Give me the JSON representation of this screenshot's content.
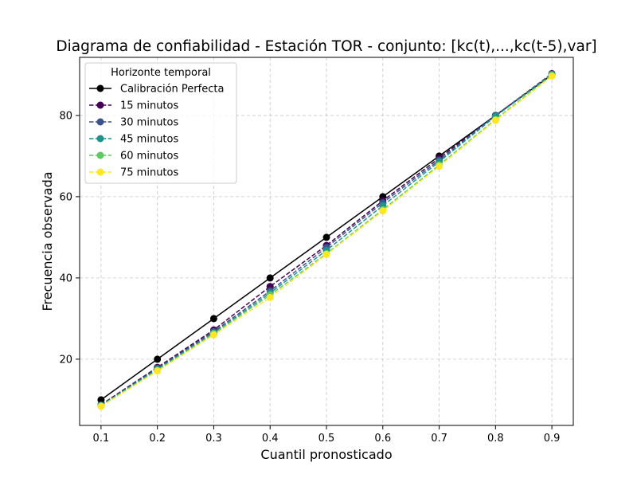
{
  "chart_data": {
    "type": "line",
    "title": "Diagrama de confiabilidad - Estación TOR - conjunto: [kc(t),...,kc(t-5),var]",
    "xlabel": "Cuantil pronosticado",
    "ylabel": "Frecuencia observada",
    "xlim": [
      0.062,
      0.938
    ],
    "ylim": [
      3.7,
      94.3
    ],
    "xticks": [
      0.1,
      0.2,
      0.3,
      0.4,
      0.5,
      0.6,
      0.7,
      0.8,
      0.9
    ],
    "xtick_labels": [
      "0.1",
      "0.2",
      "0.3",
      "0.4",
      "0.5",
      "0.6",
      "0.7",
      "0.8",
      "0.9"
    ],
    "yticks": [
      20,
      40,
      60,
      80
    ],
    "ytick_labels": [
      "20",
      "40",
      "60",
      "80"
    ],
    "grid": true,
    "legend": {
      "title": "Horizonte temporal",
      "placement": "top-left"
    },
    "x": [
      0.1,
      0.2,
      0.3,
      0.4,
      0.5,
      0.6,
      0.7,
      0.8,
      0.9
    ],
    "series": [
      {
        "name": "Calibración Perfecta",
        "color": "#000000",
        "dashed": false,
        "values": [
          10,
          20,
          30,
          40,
          50,
          60,
          70,
          80,
          90
        ]
      },
      {
        "name": "15 minutos",
        "color": "#440154",
        "dashed": true,
        "values": [
          8.8,
          18.0,
          27.2,
          37.9,
          48.0,
          59.0,
          69.5,
          80.0,
          90.3
        ]
      },
      {
        "name": "30 minutos",
        "color": "#3b528b",
        "dashed": true,
        "values": [
          8.7,
          17.8,
          26.8,
          36.8,
          47.5,
          58.5,
          69.0,
          80.0,
          90.2
        ]
      },
      {
        "name": "45 minutos",
        "color": "#21918c",
        "dashed": true,
        "values": [
          8.6,
          17.5,
          26.5,
          36.3,
          46.8,
          57.8,
          68.6,
          79.8,
          90.1
        ]
      },
      {
        "name": "60 minutos",
        "color": "#5ec962",
        "dashed": true,
        "values": [
          8.5,
          17.3,
          26.3,
          35.8,
          46.0,
          56.8,
          67.8,
          79.0,
          89.9
        ]
      },
      {
        "name": "75 minutos",
        "color": "#fde725",
        "dashed": true,
        "values": [
          8.4,
          17.1,
          26.0,
          35.2,
          45.8,
          56.5,
          67.5,
          78.8,
          89.7
        ]
      }
    ]
  }
}
